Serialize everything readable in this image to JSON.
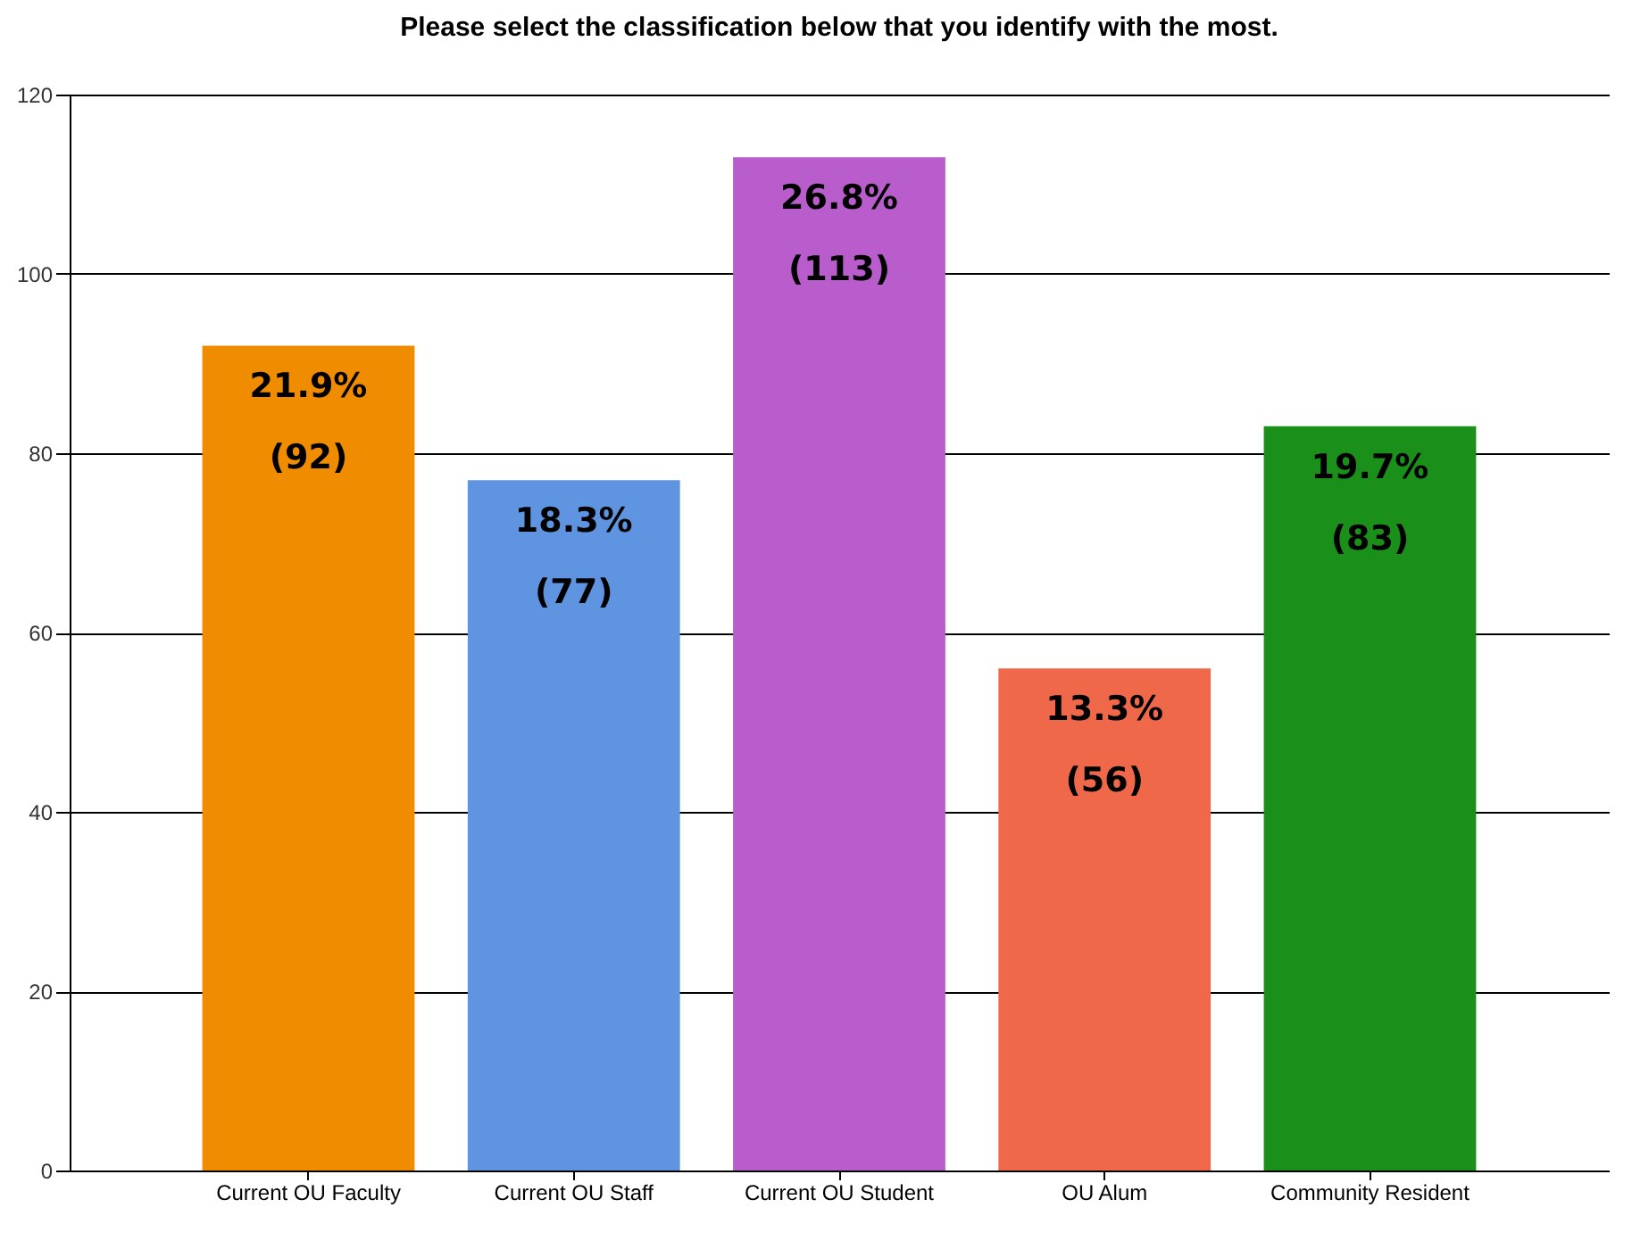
{
  "chart_data": {
    "type": "bar",
    "title": "Please select the classification below that you identify with the most.",
    "categories": [
      "Current OU Faculty",
      "Current OU Staff",
      "Current OU Student",
      "OU Alum",
      "Community Resident"
    ],
    "values": [
      92,
      77,
      113,
      56,
      83
    ],
    "colors": [
      "#f08c00",
      "#5f95e0",
      "#b95ccc",
      "#f0684a",
      "#1a8f1a"
    ],
    "value_labels": [
      "21.9%\n(92)",
      "18.3%\n(77)",
      "26.8%\n(113)",
      "13.3%\n(56)",
      "19.7%\n(83)"
    ],
    "ylim": [
      0,
      120
    ],
    "yticks": [
      0,
      20,
      40,
      60,
      80,
      100,
      120
    ],
    "grid": "y"
  }
}
